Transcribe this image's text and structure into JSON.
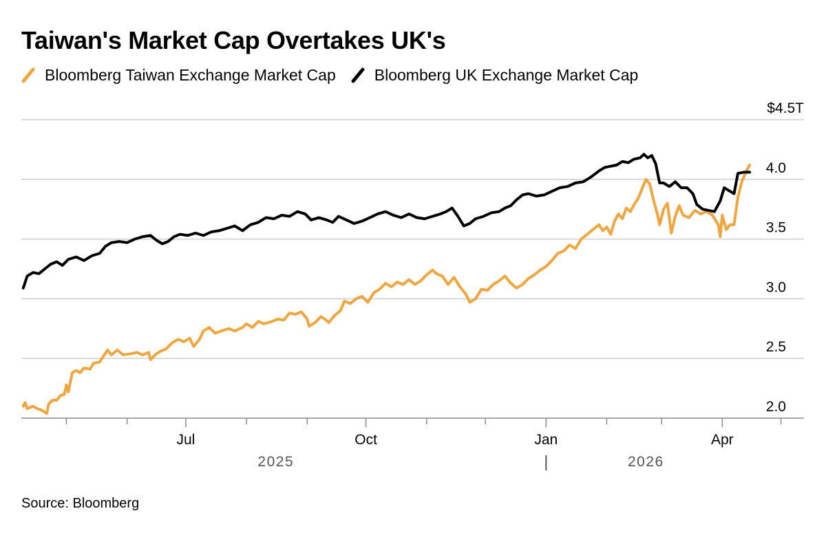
{
  "chart_data": {
    "type": "line",
    "title": "Taiwan's Market Cap Overtakes UK's",
    "source": "Source: Bloomberg",
    "y_unit_label": "$4.5T",
    "ylim": [
      2.0,
      4.5
    ],
    "yticks": [
      {
        "value": 2.0,
        "label": "2.0"
      },
      {
        "value": 2.5,
        "label": "2.5"
      },
      {
        "value": 3.0,
        "label": "3.0"
      },
      {
        "value": 3.5,
        "label": "3.5"
      },
      {
        "value": 4.0,
        "label": "4.0"
      }
    ],
    "xlim": [
      "2025-04-08",
      "2026-05-05"
    ],
    "xticks": [
      {
        "date": "2025-05-01",
        "label": ""
      },
      {
        "date": "2025-06-01",
        "label": ""
      },
      {
        "date": "2025-07-01",
        "label": "Jul"
      },
      {
        "date": "2025-08-01",
        "label": ""
      },
      {
        "date": "2025-09-01",
        "label": ""
      },
      {
        "date": "2025-10-01",
        "label": "Oct"
      },
      {
        "date": "2025-11-01",
        "label": ""
      },
      {
        "date": "2025-12-01",
        "label": ""
      },
      {
        "date": "2026-01-01",
        "label": "Jan"
      },
      {
        "date": "2026-02-01",
        "label": ""
      },
      {
        "date": "2026-03-01",
        "label": ""
      },
      {
        "date": "2026-04-01",
        "label": "Apr"
      },
      {
        "date": "2026-05-01",
        "label": ""
      }
    ],
    "year_labels": [
      {
        "date": "2025-08-16",
        "label": "2025"
      },
      {
        "date": "2026-02-21",
        "label": "2026"
      }
    ],
    "year_divider": "2026-01-01",
    "legend_placement": "top-left",
    "grid": true,
    "series": [
      {
        "name": "Bloomberg Taiwan Exchange Market Cap",
        "color": "#f0a640",
        "points": [
          [
            "2025-04-09",
            2.1
          ],
          [
            "2025-04-10",
            2.13
          ],
          [
            "2025-04-11",
            2.08
          ],
          [
            "2025-04-14",
            2.1
          ],
          [
            "2025-04-16",
            2.08
          ],
          [
            "2025-04-18",
            2.07
          ],
          [
            "2025-04-21",
            2.04
          ],
          [
            "2025-04-22",
            2.12
          ],
          [
            "2025-04-24",
            2.15
          ],
          [
            "2025-04-26",
            2.15
          ],
          [
            "2025-04-28",
            2.19
          ],
          [
            "2025-04-30",
            2.2
          ],
          [
            "2025-05-01",
            2.28
          ],
          [
            "2025-05-02",
            2.22
          ],
          [
            "2025-05-04",
            2.38
          ],
          [
            "2025-05-06",
            2.4
          ],
          [
            "2025-05-08",
            2.38
          ],
          [
            "2025-05-10",
            2.42
          ],
          [
            "2025-05-13",
            2.41
          ],
          [
            "2025-05-15",
            2.46
          ],
          [
            "2025-05-18",
            2.47
          ],
          [
            "2025-05-20",
            2.52
          ],
          [
            "2025-05-22",
            2.57
          ],
          [
            "2025-05-24",
            2.53
          ],
          [
            "2025-05-27",
            2.57
          ],
          [
            "2025-05-30",
            2.53
          ],
          [
            "2025-06-03",
            2.54
          ],
          [
            "2025-06-06",
            2.55
          ],
          [
            "2025-06-09",
            2.53
          ],
          [
            "2025-06-12",
            2.55
          ],
          [
            "2025-06-13",
            2.49
          ],
          [
            "2025-06-16",
            2.54
          ],
          [
            "2025-06-18",
            2.56
          ],
          [
            "2025-06-21",
            2.58
          ],
          [
            "2025-06-24",
            2.63
          ],
          [
            "2025-06-27",
            2.66
          ],
          [
            "2025-06-30",
            2.64
          ],
          [
            "2025-07-03",
            2.67
          ],
          [
            "2025-07-05",
            2.6
          ],
          [
            "2025-07-08",
            2.66
          ],
          [
            "2025-07-10",
            2.73
          ],
          [
            "2025-07-13",
            2.76
          ],
          [
            "2025-07-16",
            2.71
          ],
          [
            "2025-07-19",
            2.73
          ],
          [
            "2025-07-23",
            2.75
          ],
          [
            "2025-07-26",
            2.73
          ],
          [
            "2025-07-30",
            2.76
          ],
          [
            "2025-08-01",
            2.79
          ],
          [
            "2025-08-04",
            2.76
          ],
          [
            "2025-08-07",
            2.81
          ],
          [
            "2025-08-10",
            2.79
          ],
          [
            "2025-08-14",
            2.81
          ],
          [
            "2025-08-17",
            2.83
          ],
          [
            "2025-08-20",
            2.82
          ],
          [
            "2025-08-23",
            2.88
          ],
          [
            "2025-08-26",
            2.87
          ],
          [
            "2025-08-29",
            2.89
          ],
          [
            "2025-09-01",
            2.83
          ],
          [
            "2025-09-02",
            2.77
          ],
          [
            "2025-09-05",
            2.8
          ],
          [
            "2025-09-08",
            2.85
          ],
          [
            "2025-09-10",
            2.83
          ],
          [
            "2025-09-12",
            2.8
          ],
          [
            "2025-09-15",
            2.86
          ],
          [
            "2025-09-18",
            2.9
          ],
          [
            "2025-09-20",
            2.98
          ],
          [
            "2025-09-23",
            2.96
          ],
          [
            "2025-09-26",
            3.0
          ],
          [
            "2025-09-29",
            3.02
          ],
          [
            "2025-10-02",
            2.97
          ],
          [
            "2025-10-05",
            3.05
          ],
          [
            "2025-10-08",
            3.08
          ],
          [
            "2025-10-11",
            3.13
          ],
          [
            "2025-10-14",
            3.1
          ],
          [
            "2025-10-17",
            3.14
          ],
          [
            "2025-10-20",
            3.12
          ],
          [
            "2025-10-23",
            3.16
          ],
          [
            "2025-10-26",
            3.12
          ],
          [
            "2025-10-29",
            3.15
          ],
          [
            "2025-11-01",
            3.2
          ],
          [
            "2025-11-04",
            3.24
          ],
          [
            "2025-11-06",
            3.21
          ],
          [
            "2025-11-09",
            3.19
          ],
          [
            "2025-11-12",
            3.12
          ],
          [
            "2025-11-15",
            3.18
          ],
          [
            "2025-11-18",
            3.1
          ],
          [
            "2025-11-21",
            3.04
          ],
          [
            "2025-11-23",
            2.97
          ],
          [
            "2025-11-26",
            3.0
          ],
          [
            "2025-11-29",
            3.08
          ],
          [
            "2025-12-02",
            3.07
          ],
          [
            "2025-12-05",
            3.12
          ],
          [
            "2025-12-08",
            3.15
          ],
          [
            "2025-12-11",
            3.19
          ],
          [
            "2025-12-14",
            3.13
          ],
          [
            "2025-12-17",
            3.09
          ],
          [
            "2025-12-20",
            3.12
          ],
          [
            "2025-12-23",
            3.17
          ],
          [
            "2025-12-26",
            3.2
          ],
          [
            "2025-12-29",
            3.24
          ],
          [
            "2026-01-01",
            3.27
          ],
          [
            "2026-01-04",
            3.32
          ],
          [
            "2026-01-07",
            3.38
          ],
          [
            "2026-01-10",
            3.4
          ],
          [
            "2026-01-13",
            3.45
          ],
          [
            "2026-01-16",
            3.42
          ],
          [
            "2026-01-19",
            3.5
          ],
          [
            "2026-01-22",
            3.54
          ],
          [
            "2026-01-25",
            3.58
          ],
          [
            "2026-01-28",
            3.62
          ],
          [
            "2026-01-30",
            3.57
          ],
          [
            "2026-02-01",
            3.6
          ],
          [
            "2026-02-03",
            3.54
          ],
          [
            "2026-02-05",
            3.65
          ],
          [
            "2026-02-07",
            3.71
          ],
          [
            "2026-02-09",
            3.67
          ],
          [
            "2026-02-11",
            3.76
          ],
          [
            "2026-02-13",
            3.73
          ],
          [
            "2026-02-15",
            3.79
          ],
          [
            "2026-02-17",
            3.84
          ],
          [
            "2026-02-19",
            3.92
          ],
          [
            "2026-02-21",
            4.0
          ],
          [
            "2026-02-23",
            3.96
          ],
          [
            "2026-02-25",
            3.82
          ],
          [
            "2026-02-27",
            3.7
          ],
          [
            "2026-02-28",
            3.62
          ],
          [
            "2026-03-02",
            3.75
          ],
          [
            "2026-03-04",
            3.8
          ],
          [
            "2026-03-06",
            3.55
          ],
          [
            "2026-03-08",
            3.69
          ],
          [
            "2026-03-10",
            3.78
          ],
          [
            "2026-03-12",
            3.7
          ],
          [
            "2026-03-15",
            3.68
          ],
          [
            "2026-03-18",
            3.74
          ],
          [
            "2026-03-21",
            3.71
          ],
          [
            "2026-03-24",
            3.73
          ],
          [
            "2026-03-27",
            3.7
          ],
          [
            "2026-03-30",
            3.62
          ],
          [
            "2026-03-31",
            3.52
          ],
          [
            "2026-04-01",
            3.7
          ],
          [
            "2026-04-03",
            3.58
          ],
          [
            "2026-04-05",
            3.62
          ],
          [
            "2026-04-07",
            3.62
          ],
          [
            "2026-04-09",
            3.85
          ],
          [
            "2026-04-11",
            3.98
          ],
          [
            "2026-04-13",
            4.06
          ],
          [
            "2026-04-15",
            4.12
          ]
        ]
      },
      {
        "name": "Bloomberg UK Exchange Market Cap",
        "color": "#000000",
        "points": [
          [
            "2025-04-09",
            3.09
          ],
          [
            "2025-04-10",
            3.14
          ],
          [
            "2025-04-11",
            3.19
          ],
          [
            "2025-04-14",
            3.22
          ],
          [
            "2025-04-17",
            3.21
          ],
          [
            "2025-04-20",
            3.25
          ],
          [
            "2025-04-23",
            3.29
          ],
          [
            "2025-04-26",
            3.31
          ],
          [
            "2025-04-29",
            3.28
          ],
          [
            "2025-05-02",
            3.33
          ],
          [
            "2025-05-06",
            3.35
          ],
          [
            "2025-05-10",
            3.32
          ],
          [
            "2025-05-14",
            3.36
          ],
          [
            "2025-05-18",
            3.38
          ],
          [
            "2025-05-21",
            3.44
          ],
          [
            "2025-05-24",
            3.47
          ],
          [
            "2025-05-28",
            3.48
          ],
          [
            "2025-06-01",
            3.47
          ],
          [
            "2025-06-05",
            3.5
          ],
          [
            "2025-06-09",
            3.52
          ],
          [
            "2025-06-13",
            3.53
          ],
          [
            "2025-06-16",
            3.49
          ],
          [
            "2025-06-19",
            3.46
          ],
          [
            "2025-06-22",
            3.48
          ],
          [
            "2025-06-25",
            3.52
          ],
          [
            "2025-06-28",
            3.54
          ],
          [
            "2025-07-02",
            3.53
          ],
          [
            "2025-07-06",
            3.55
          ],
          [
            "2025-07-10",
            3.53
          ],
          [
            "2025-07-14",
            3.56
          ],
          [
            "2025-07-18",
            3.57
          ],
          [
            "2025-07-22",
            3.59
          ],
          [
            "2025-07-26",
            3.61
          ],
          [
            "2025-07-30",
            3.57
          ],
          [
            "2025-08-03",
            3.62
          ],
          [
            "2025-08-07",
            3.64
          ],
          [
            "2025-08-11",
            3.68
          ],
          [
            "2025-08-15",
            3.67
          ],
          [
            "2025-08-19",
            3.7
          ],
          [
            "2025-08-23",
            3.69
          ],
          [
            "2025-08-27",
            3.73
          ],
          [
            "2025-08-31",
            3.71
          ],
          [
            "2025-09-03",
            3.66
          ],
          [
            "2025-09-07",
            3.68
          ],
          [
            "2025-09-11",
            3.66
          ],
          [
            "2025-09-14",
            3.64
          ],
          [
            "2025-09-17",
            3.69
          ],
          [
            "2025-09-21",
            3.66
          ],
          [
            "2025-09-25",
            3.63
          ],
          [
            "2025-09-29",
            3.65
          ],
          [
            "2025-10-03",
            3.68
          ],
          [
            "2025-10-07",
            3.71
          ],
          [
            "2025-10-11",
            3.73
          ],
          [
            "2025-10-15",
            3.7
          ],
          [
            "2025-10-19",
            3.68
          ],
          [
            "2025-10-23",
            3.71
          ],
          [
            "2025-10-27",
            3.68
          ],
          [
            "2025-10-31",
            3.67
          ],
          [
            "2025-11-04",
            3.69
          ],
          [
            "2025-11-08",
            3.71
          ],
          [
            "2025-11-11",
            3.73
          ],
          [
            "2025-11-14",
            3.76
          ],
          [
            "2025-11-17",
            3.69
          ],
          [
            "2025-11-20",
            3.61
          ],
          [
            "2025-11-23",
            3.63
          ],
          [
            "2025-11-26",
            3.67
          ],
          [
            "2025-11-30",
            3.69
          ],
          [
            "2025-12-04",
            3.72
          ],
          [
            "2025-12-08",
            3.73
          ],
          [
            "2025-12-11",
            3.76
          ],
          [
            "2025-12-14",
            3.78
          ],
          [
            "2025-12-17",
            3.83
          ],
          [
            "2025-12-20",
            3.87
          ],
          [
            "2025-12-23",
            3.88
          ],
          [
            "2025-12-27",
            3.86
          ],
          [
            "2025-12-31",
            3.87
          ],
          [
            "2026-01-04",
            3.9
          ],
          [
            "2026-01-08",
            3.93
          ],
          [
            "2026-01-12",
            3.94
          ],
          [
            "2026-01-16",
            3.97
          ],
          [
            "2026-01-20",
            3.98
          ],
          [
            "2026-01-24",
            4.02
          ],
          [
            "2026-01-28",
            4.07
          ],
          [
            "2026-01-31",
            4.1
          ],
          [
            "2026-02-03",
            4.11
          ],
          [
            "2026-02-06",
            4.12
          ],
          [
            "2026-02-09",
            4.15
          ],
          [
            "2026-02-12",
            4.14
          ],
          [
            "2026-02-15",
            4.17
          ],
          [
            "2026-02-18",
            4.18
          ],
          [
            "2026-02-20",
            4.21
          ],
          [
            "2026-02-22",
            4.18
          ],
          [
            "2026-02-24",
            4.2
          ],
          [
            "2026-02-26",
            4.13
          ],
          [
            "2026-02-27",
            4.05
          ],
          [
            "2026-02-28",
            3.97
          ],
          [
            "2026-03-02",
            3.97
          ],
          [
            "2026-03-05",
            3.94
          ],
          [
            "2026-03-08",
            3.98
          ],
          [
            "2026-03-11",
            3.93
          ],
          [
            "2026-03-14",
            3.93
          ],
          [
            "2026-03-17",
            3.88
          ],
          [
            "2026-03-19",
            3.79
          ],
          [
            "2026-03-22",
            3.75
          ],
          [
            "2026-03-25",
            3.74
          ],
          [
            "2026-03-28",
            3.73
          ],
          [
            "2026-03-31",
            3.82
          ],
          [
            "2026-04-02",
            3.93
          ],
          [
            "2026-04-05",
            3.9
          ],
          [
            "2026-04-07",
            3.88
          ],
          [
            "2026-04-09",
            4.05
          ],
          [
            "2026-04-12",
            4.06
          ],
          [
            "2026-04-15",
            4.06
          ]
        ]
      }
    ]
  }
}
